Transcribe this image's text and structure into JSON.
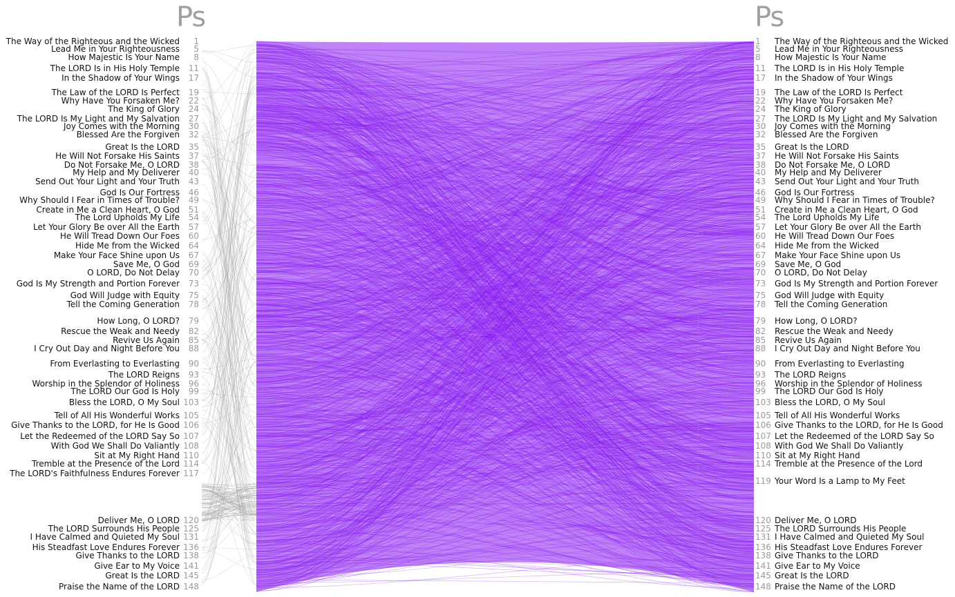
{
  "book_left": "Ps",
  "book_right": "Ps",
  "colors": {
    "links": "#8a1df0",
    "left_links": "#9a9a9a",
    "numbers": "#9a9a9a"
  },
  "left_sections": [
    {
      "num": "1",
      "title": "The Way of the Righteous and the Wicked"
    },
    {
      "num": "5",
      "title": "Lead Me in Your Righteousness"
    },
    {
      "num": "8",
      "title": "How Majestic Is Your Name"
    },
    {
      "num": "11",
      "title": "The LORD Is in His Holy Temple"
    },
    {
      "num": "17",
      "title": "In the Shadow of Your Wings"
    },
    {
      "num": "19",
      "title": "The Law of the LORD Is Perfect"
    },
    {
      "num": "22",
      "title": "Why Have You Forsaken Me?"
    },
    {
      "num": "24",
      "title": "The King of Glory"
    },
    {
      "num": "27",
      "title": "The LORD Is My Light and My Salvation"
    },
    {
      "num": "30",
      "title": "Joy Comes with the Morning"
    },
    {
      "num": "32",
      "title": "Blessed Are the Forgiven"
    },
    {
      "num": "35",
      "title": "Great Is the LORD"
    },
    {
      "num": "37",
      "title": "He Will Not Forsake His Saints"
    },
    {
      "num": "38",
      "title": "Do Not Forsake Me, O LORD"
    },
    {
      "num": "40",
      "title": "My Help and My Deliverer"
    },
    {
      "num": "43",
      "title": "Send Out Your Light and Your Truth"
    },
    {
      "num": "46",
      "title": "God Is Our Fortress"
    },
    {
      "num": "49",
      "title": "Why Should I Fear in Times of Trouble?"
    },
    {
      "num": "51",
      "title": "Create in Me a Clean Heart, O God"
    },
    {
      "num": "54",
      "title": "The Lord Upholds My Life"
    },
    {
      "num": "57",
      "title": "Let Your Glory Be over All the Earth"
    },
    {
      "num": "60",
      "title": "He Will Tread Down Our Foes"
    },
    {
      "num": "64",
      "title": "Hide Me from the Wicked"
    },
    {
      "num": "67",
      "title": "Make Your Face Shine upon Us"
    },
    {
      "num": "69",
      "title": "Save Me, O God"
    },
    {
      "num": "70",
      "title": "O LORD, Do Not Delay"
    },
    {
      "num": "73",
      "title": "God Is My Strength and Portion Forever"
    },
    {
      "num": "75",
      "title": "God Will Judge with Equity"
    },
    {
      "num": "78",
      "title": "Tell the Coming Generation"
    },
    {
      "num": "79",
      "title": "How Long, O LORD?"
    },
    {
      "num": "82",
      "title": "Rescue the Weak and Needy"
    },
    {
      "num": "85",
      "title": "Revive Us Again"
    },
    {
      "num": "88",
      "title": "I Cry Out Day and Night Before You"
    },
    {
      "num": "90",
      "title": "From Everlasting to Everlasting"
    },
    {
      "num": "93",
      "title": "The LORD Reigns"
    },
    {
      "num": "96",
      "title": "Worship in the Splendor of Holiness"
    },
    {
      "num": "99",
      "title": "The LORD Our God Is Holy"
    },
    {
      "num": "103",
      "title": "Bless the LORD, O My Soul"
    },
    {
      "num": "105",
      "title": "Tell of All His Wonderful Works"
    },
    {
      "num": "106",
      "title": "Give Thanks to the LORD, for He Is Good"
    },
    {
      "num": "107",
      "title": "Let the Redeemed of the LORD Say So"
    },
    {
      "num": "108",
      "title": "With God We Shall Do Valiantly"
    },
    {
      "num": "110",
      "title": "Sit at My Right Hand"
    },
    {
      "num": "114",
      "title": "Tremble at the Presence of the Lord"
    },
    {
      "num": "117",
      "title": "The LORD's Faithfulness Endures Forever"
    },
    {
      "num": "120",
      "title": "Deliver Me, O LORD"
    },
    {
      "num": "125",
      "title": "The LORD Surrounds His People"
    },
    {
      "num": "131",
      "title": "I Have Calmed and Quieted My Soul"
    },
    {
      "num": "136",
      "title": "His Steadfast Love Endures Forever"
    },
    {
      "num": "138",
      "title": "Give Thanks to the LORD"
    },
    {
      "num": "141",
      "title": "Give Ear to My Voice"
    },
    {
      "num": "145",
      "title": "Great Is the LORD"
    },
    {
      "num": "148",
      "title": "Praise the Name of the LORD"
    }
  ],
  "right_sections": [
    {
      "num": "1",
      "title": "The Way of the Righteous and the Wicked"
    },
    {
      "num": "5",
      "title": "Lead Me in Your Righteousness"
    },
    {
      "num": "8",
      "title": "How Majestic Is Your Name"
    },
    {
      "num": "11",
      "title": "The LORD Is in His Holy Temple"
    },
    {
      "num": "17",
      "title": "In the Shadow of Your Wings"
    },
    {
      "num": "19",
      "title": "The Law of the LORD Is Perfect"
    },
    {
      "num": "22",
      "title": "Why Have You Forsaken Me?"
    },
    {
      "num": "24",
      "title": "The King of Glory"
    },
    {
      "num": "27",
      "title": "The LORD Is My Light and My Salvation"
    },
    {
      "num": "30",
      "title": "Joy Comes with the Morning"
    },
    {
      "num": "32",
      "title": "Blessed Are the Forgiven"
    },
    {
      "num": "35",
      "title": "Great Is the LORD"
    },
    {
      "num": "37",
      "title": "He Will Not Forsake His Saints"
    },
    {
      "num": "38",
      "title": "Do Not Forsake Me, O LORD"
    },
    {
      "num": "40",
      "title": "My Help and My Deliverer"
    },
    {
      "num": "43",
      "title": "Send Out Your Light and Your Truth"
    },
    {
      "num": "46",
      "title": "God Is Our Fortress"
    },
    {
      "num": "49",
      "title": "Why Should I Fear in Times of Trouble?"
    },
    {
      "num": "51",
      "title": "Create in Me a Clean Heart, O God"
    },
    {
      "num": "54",
      "title": "The Lord Upholds My Life"
    },
    {
      "num": "57",
      "title": "Let Your Glory Be over All the Earth"
    },
    {
      "num": "60",
      "title": "He Will Tread Down Our Foes"
    },
    {
      "num": "64",
      "title": "Hide Me from the Wicked"
    },
    {
      "num": "67",
      "title": "Make Your Face Shine upon Us"
    },
    {
      "num": "69",
      "title": "Save Me, O God"
    },
    {
      "num": "70",
      "title": "O LORD, Do Not Delay"
    },
    {
      "num": "73",
      "title": "God Is My Strength and Portion Forever"
    },
    {
      "num": "75",
      "title": "God Will Judge with Equity"
    },
    {
      "num": "78",
      "title": "Tell the Coming Generation"
    },
    {
      "num": "79",
      "title": "How Long, O LORD?"
    },
    {
      "num": "82",
      "title": "Rescue the Weak and Needy"
    },
    {
      "num": "85",
      "title": "Revive Us Again"
    },
    {
      "num": "88",
      "title": "I Cry Out Day and Night Before You"
    },
    {
      "num": "90",
      "title": "From Everlasting to Everlasting"
    },
    {
      "num": "93",
      "title": "The LORD Reigns"
    },
    {
      "num": "96",
      "title": "Worship in the Splendor of Holiness"
    },
    {
      "num": "99",
      "title": "The LORD Our God Is Holy"
    },
    {
      "num": "103",
      "title": "Bless the LORD, O My Soul"
    },
    {
      "num": "105",
      "title": "Tell of All His Wonderful Works"
    },
    {
      "num": "106",
      "title": "Give Thanks to the LORD, for He Is Good"
    },
    {
      "num": "107",
      "title": "Let the Redeemed of the LORD Say So"
    },
    {
      "num": "108",
      "title": "With God We Shall Do Valiantly"
    },
    {
      "num": "110",
      "title": "Sit at My Right Hand"
    },
    {
      "num": "114",
      "title": "Tremble at the Presence of the Lord"
    },
    {
      "num": "119",
      "title": "Your Word Is a Lamp to My Feet"
    },
    {
      "num": "120",
      "title": "Deliver Me, O LORD"
    },
    {
      "num": "125",
      "title": "The LORD Surrounds His People"
    },
    {
      "num": "131",
      "title": "I Have Calmed and Quieted My Soul"
    },
    {
      "num": "136",
      "title": "His Steadfast Love Endures Forever"
    },
    {
      "num": "138",
      "title": "Give Thanks to the LORD"
    },
    {
      "num": "141",
      "title": "Give Ear to My Voice"
    },
    {
      "num": "145",
      "title": "Great Is the LORD"
    },
    {
      "num": "148",
      "title": "Praise the Name of the LORD"
    }
  ]
}
